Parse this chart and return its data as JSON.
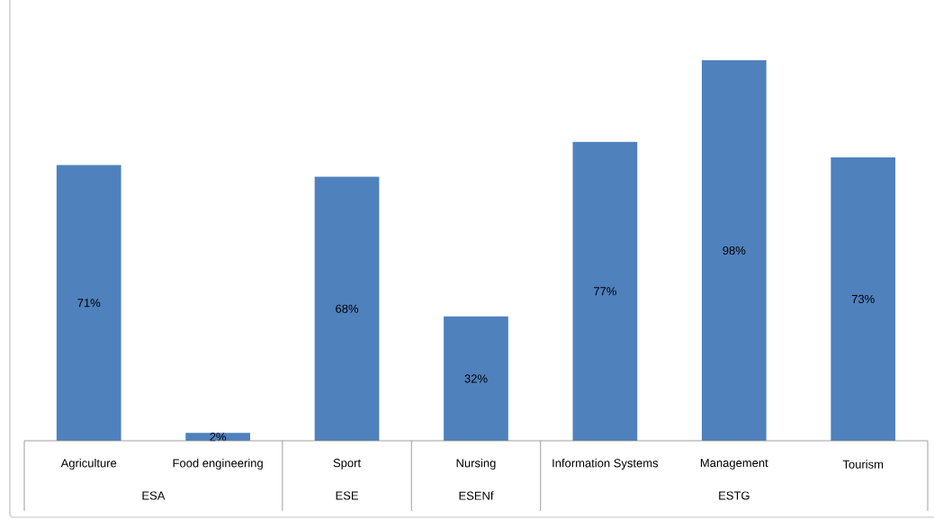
{
  "chart_data": {
    "type": "bar",
    "categories": [
      "Agriculture",
      "Food engineering",
      "Sport",
      "Nursing",
      "Information Systems",
      "Management",
      "Tourism"
    ],
    "values": [
      71,
      2,
      68,
      32,
      77,
      98,
      73
    ],
    "value_labels": [
      "71%",
      "2%",
      "68%",
      "32%",
      "77%",
      "98%",
      "73%"
    ],
    "color": "#4f81bd",
    "annotations": [
      "ESA",
      "ESE",
      "ESENf",
      "ESTG"
    ]
  }
}
